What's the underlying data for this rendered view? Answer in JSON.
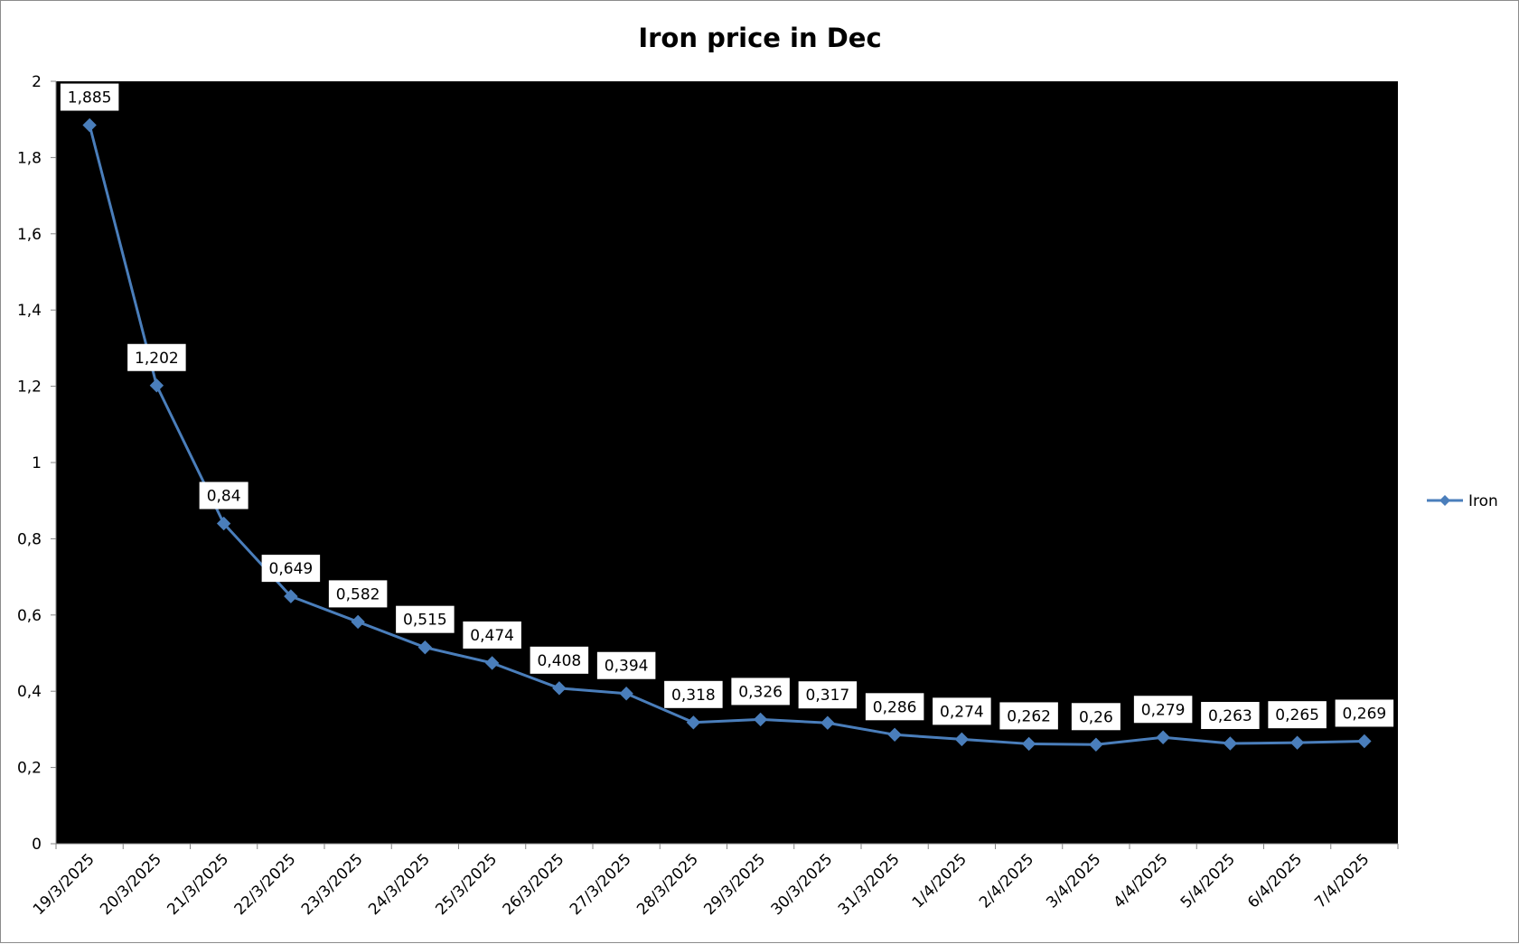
{
  "chart_data": {
    "type": "line",
    "title": "Iron price in Dec",
    "xlabel": "",
    "ylabel": "",
    "categories": [
      "19/3/2025",
      "20/3/2025",
      "21/3/2025",
      "22/3/2025",
      "23/3/2025",
      "24/3/2025",
      "25/3/2025",
      "26/3/2025",
      "27/3/2025",
      "28/3/2025",
      "29/3/2025",
      "30/3/2025",
      "31/3/2025",
      "1/4/2025",
      "2/4/2025",
      "3/4/2025",
      "4/4/2025",
      "5/4/2025",
      "6/4/2025",
      "7/4/2025"
    ],
    "series": [
      {
        "name": "Iron",
        "values": [
          1.885,
          1.202,
          0.84,
          0.649,
          0.582,
          0.515,
          0.474,
          0.408,
          0.394,
          0.318,
          0.326,
          0.317,
          0.286,
          0.274,
          0.262,
          0.26,
          0.279,
          0.263,
          0.265,
          0.269
        ],
        "data_labels": [
          "1,885",
          "1,202",
          "0,84",
          "0,649",
          "0,582",
          "0,515",
          "0,474",
          "0,408",
          "0,394",
          "0,318",
          "0,326",
          "0,317",
          "0,286",
          "0,274",
          "0,262",
          "0,26",
          "0,279",
          "0,263",
          "0,265",
          "0,269"
        ],
        "color": "#4a7ebb",
        "marker": "diamond"
      }
    ],
    "ylim": [
      0,
      2
    ],
    "y_ticks": [
      0,
      0.2,
      0.4,
      0.6,
      0.8,
      1,
      1.2,
      1.4,
      1.6,
      1.8,
      2
    ],
    "y_tick_labels": [
      "0",
      "0,2",
      "0,4",
      "0,6",
      "0,8",
      "1",
      "1,2",
      "1,4",
      "1,6",
      "1,8",
      "2"
    ],
    "grid": false,
    "legend": {
      "position": "right",
      "entries": [
        "Iron"
      ]
    },
    "plot_background": "#000000",
    "page_background": "#ffffff"
  }
}
